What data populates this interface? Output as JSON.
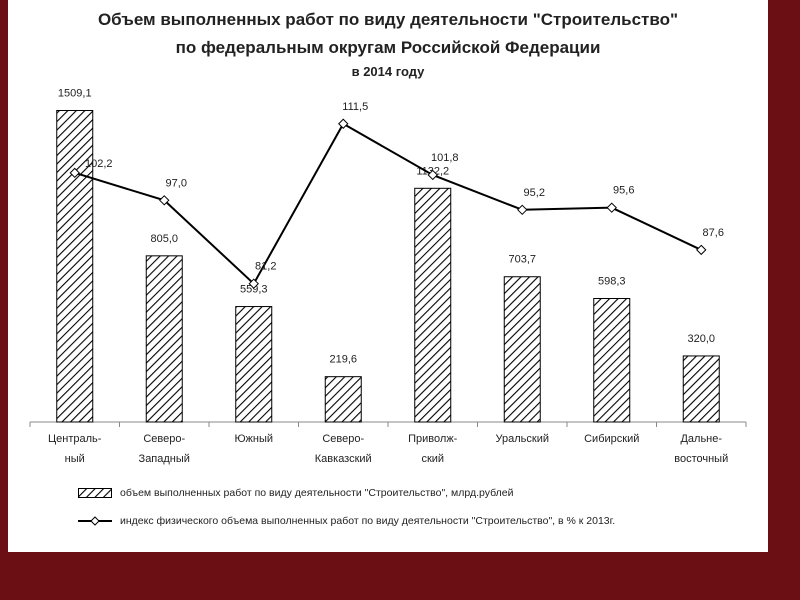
{
  "colors": {
    "frame": "#6b0f14",
    "bar_stroke": "#000000",
    "line": "#000000",
    "grid": "#cccccc"
  },
  "title": {
    "line1": "Объем выполненных работ по виду деятельности \"Строительство\"",
    "line2": "по федеральным округам Российской Федерации",
    "line3": "в 2014 году"
  },
  "legend": {
    "bars": "объем выполненных работ по виду деятельности \"Строительство\", млрд.рублей",
    "line": "индекс физического объема выполненных работ по виду деятельности \"Строительство\", в % к 2013г."
  },
  "chart_data": {
    "type": "bar",
    "categories": [
      [
        "Централь-",
        "ный"
      ],
      [
        "Северо-",
        "Западный"
      ],
      [
        "Южный"
      ],
      [
        "Северо-",
        "Кавказский"
      ],
      [
        "Приволж-",
        "ский"
      ],
      [
        "Уральский"
      ],
      [
        "Сибирский"
      ],
      [
        "Дальне-",
        "восточный"
      ]
    ],
    "series": [
      {
        "name": "объем выполненных работ по виду деятельности \"Строительство\", млрд.рублей",
        "kind": "bar",
        "pattern": "hatched",
        "values": [
          1509.1,
          805.0,
          559.3,
          219.6,
          1132.2,
          703.7,
          598.3,
          320.0
        ],
        "labels": [
          "1509,1",
          "805,0",
          "559,3",
          "219,6",
          "1132,2",
          "703,7",
          "598,3",
          "320,0"
        ]
      },
      {
        "name": "индекс физического объема выполненных работ по виду деятельности \"Строительство\", в % к 2013г.",
        "kind": "line",
        "marker": "diamond",
        "values": [
          102.2,
          97.0,
          81.2,
          111.5,
          101.8,
          95.2,
          95.6,
          87.6
        ],
        "labels": [
          "102,2",
          "97,0",
          "81,2",
          "111,5",
          "101,8",
          "95,2",
          "95,6",
          "87,6"
        ]
      }
    ],
    "bar_axis_range": [
      0,
      1560
    ],
    "line_axis_range": [
      55,
      116
    ],
    "legend_position": "bottom"
  }
}
